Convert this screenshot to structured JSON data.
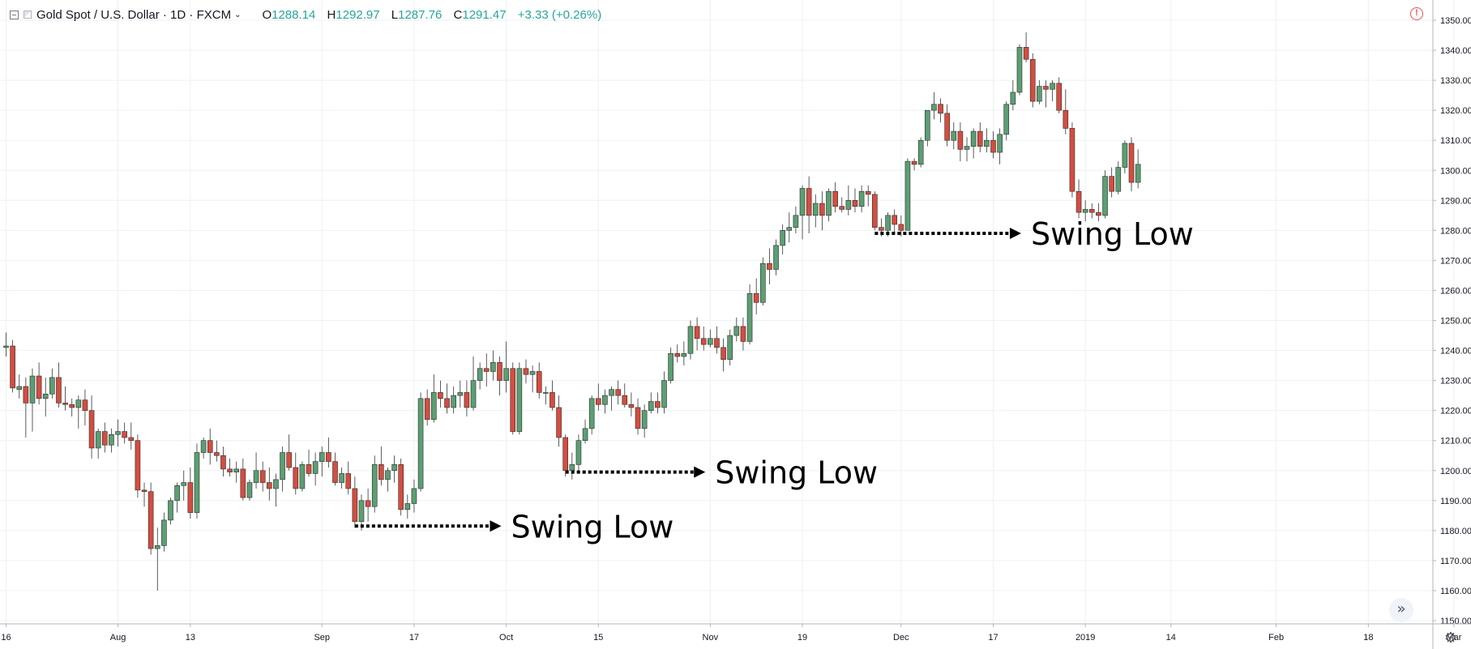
{
  "header": {
    "title": "Gold Spot / U.S. Dollar · 1D · FXCM",
    "chevron": "⌄",
    "o_label": "O",
    "o_value": "1288.14",
    "h_label": "H",
    "h_value": "1292.97",
    "l_label": "L",
    "l_value": "1287.76",
    "c_label": "C",
    "c_value": "1291.47",
    "change": "+3.33 (+0.26%)"
  },
  "icons": {
    "collapse": "collapse-icon",
    "symbol": "symbol-icon",
    "alert": "alert-icon",
    "alert_glyph": "!",
    "scroll": "scroll-right-icon",
    "scroll_glyph": "»",
    "settings": "gear-icon",
    "settings_glyph": "⚙"
  },
  "colors": {
    "up": "#5b9f73",
    "down": "#d44d3f",
    "background": "#ffffff",
    "grid": "#eef0f3",
    "text": "#131722"
  },
  "chart_data": {
    "type": "candlestick",
    "title": "Gold Spot / U.S. Dollar",
    "ylim": [
      1150,
      1355
    ],
    "y_ticks": [
      1150,
      1160,
      1170,
      1180,
      1190,
      1200,
      1210,
      1220,
      1230,
      1240,
      1250,
      1260,
      1270,
      1280,
      1290,
      1300,
      1310,
      1320,
      1330,
      1340,
      1350
    ],
    "x_tick_labels": [
      "16",
      "Aug",
      "13",
      "Sep",
      "17",
      "Oct",
      "15",
      "Nov",
      "19",
      "Dec",
      "17",
      "2019",
      "14",
      "Feb",
      "18",
      "Mar"
    ],
    "x_tick_bar_index": [
      0,
      17,
      28,
      48,
      62,
      76,
      90,
      107,
      121,
      136,
      150,
      164,
      177,
      193,
      207,
      220
    ],
    "grid": true,
    "candles": [
      [
        1241.0,
        1246.0,
        1238.0,
        1241.5
      ],
      [
        1241.5,
        1243.5,
        1226.0,
        1227.5
      ],
      [
        1227.0,
        1232.0,
        1224.0,
        1228.0
      ],
      [
        1228.0,
        1231.0,
        1211.0,
        1222.5
      ],
      [
        1222.5,
        1234.0,
        1213.0,
        1231.5
      ],
      [
        1231.5,
        1236.0,
        1222.0,
        1224.0
      ],
      [
        1224.0,
        1231.0,
        1218.0,
        1225.5
      ],
      [
        1225.5,
        1234.0,
        1224.0,
        1231.0
      ],
      [
        1231.0,
        1236.0,
        1221.0,
        1222.5
      ],
      [
        1222.5,
        1228.0,
        1220.0,
        1222.0
      ],
      [
        1222.0,
        1224.0,
        1218.0,
        1221.0
      ],
      [
        1221.0,
        1225.0,
        1214.0,
        1223.5
      ],
      [
        1223.5,
        1227.0,
        1215.0,
        1220.0
      ],
      [
        1220.0,
        1225.0,
        1204.0,
        1207.5
      ],
      [
        1207.5,
        1214.0,
        1204.0,
        1213.0
      ],
      [
        1213.0,
        1216.0,
        1206.0,
        1208.5
      ],
      [
        1208.5,
        1214.0,
        1206.0,
        1212.0
      ],
      [
        1212.0,
        1217.0,
        1208.0,
        1213.0
      ],
      [
        1213.0,
        1216.0,
        1209.0,
        1211.0
      ],
      [
        1211.0,
        1216.0,
        1207.0,
        1210.0
      ],
      [
        1210.0,
        1212.0,
        1191.0,
        1193.5
      ],
      [
        1193.5,
        1196.0,
        1188.0,
        1193.0
      ],
      [
        1193.0,
        1196.0,
        1172.0,
        1174.0
      ],
      [
        1174.0,
        1181.0,
        1160.0,
        1175.0
      ],
      [
        1175.0,
        1186.0,
        1173.0,
        1183.5
      ],
      [
        1183.5,
        1191.0,
        1182.0,
        1190.0
      ],
      [
        1190.0,
        1196.0,
        1186.0,
        1195.0
      ],
      [
        1195.0,
        1200.0,
        1190.0,
        1196.0
      ],
      [
        1196.0,
        1201.0,
        1184.0,
        1186.0
      ],
      [
        1186.0,
        1209.0,
        1184.0,
        1206.0
      ],
      [
        1206.0,
        1211.0,
        1204.0,
        1210.0
      ],
      [
        1210.0,
        1214.0,
        1202.0,
        1206.0
      ],
      [
        1206.0,
        1210.0,
        1203.0,
        1205.0
      ],
      [
        1205.0,
        1208.0,
        1198.0,
        1200.5
      ],
      [
        1200.5,
        1204.0,
        1198.0,
        1199.5
      ],
      [
        1199.5,
        1203.0,
        1196.0,
        1200.5
      ],
      [
        1200.5,
        1204.0,
        1190.0,
        1191.0
      ],
      [
        1191.0,
        1197.0,
        1190.0,
        1196.0
      ],
      [
        1196.0,
        1206.0,
        1194.0,
        1200.0
      ],
      [
        1200.0,
        1203.0,
        1193.0,
        1196.0
      ],
      [
        1196.0,
        1201.0,
        1190.0,
        1194.0
      ],
      [
        1194.0,
        1199.0,
        1188.0,
        1197.0
      ],
      [
        1197.0,
        1208.0,
        1193.0,
        1206.0
      ],
      [
        1206.0,
        1212.0,
        1200.0,
        1201.0
      ],
      [
        1201.0,
        1206.0,
        1192.0,
        1194.0
      ],
      [
        1194.0,
        1203.0,
        1193.0,
        1202.0
      ],
      [
        1202.0,
        1207.0,
        1198.0,
        1199.0
      ],
      [
        1199.0,
        1206.0,
        1195.0,
        1203.0
      ],
      [
        1203.0,
        1208.0,
        1198.0,
        1206.0
      ],
      [
        1206.0,
        1211.0,
        1201.0,
        1203.0
      ],
      [
        1203.0,
        1206.0,
        1195.0,
        1196.0
      ],
      [
        1196.0,
        1201.0,
        1194.0,
        1199.0
      ],
      [
        1199.0,
        1203.0,
        1192.0,
        1194.0
      ],
      [
        1194.0,
        1198.0,
        1181.0,
        1183.0
      ],
      [
        1183.0,
        1192.0,
        1180.0,
        1190.0
      ],
      [
        1190.0,
        1194.0,
        1183.0,
        1188.0
      ],
      [
        1188.0,
        1205.0,
        1186.0,
        1202.0
      ],
      [
        1202.0,
        1208.0,
        1195.0,
        1197.0
      ],
      [
        1197.0,
        1201.0,
        1193.0,
        1200.0
      ],
      [
        1200.0,
        1205.0,
        1196.0,
        1202.0
      ],
      [
        1202.0,
        1204.0,
        1185.0,
        1187.0
      ],
      [
        1187.0,
        1192.0,
        1184.0,
        1189.0
      ],
      [
        1189.0,
        1197.0,
        1186.0,
        1194.0
      ],
      [
        1194.0,
        1226.0,
        1193.0,
        1224.0
      ],
      [
        1224.0,
        1227.0,
        1215.0,
        1217.0
      ],
      [
        1217.0,
        1232.0,
        1216.0,
        1226.0
      ],
      [
        1226.0,
        1230.0,
        1221.0,
        1224.0
      ],
      [
        1224.0,
        1229.0,
        1219.0,
        1221.0
      ],
      [
        1221.0,
        1228.0,
        1219.0,
        1225.0
      ],
      [
        1225.0,
        1230.0,
        1221.0,
        1226.0
      ],
      [
        1226.0,
        1230.0,
        1218.0,
        1221.0
      ],
      [
        1221.0,
        1238.0,
        1220.0,
        1230.0
      ],
      [
        1230.0,
        1236.0,
        1227.0,
        1234.0
      ],
      [
        1234.0,
        1239.0,
        1228.0,
        1233.0
      ],
      [
        1233.0,
        1240.0,
        1230.0,
        1236.0
      ],
      [
        1236.0,
        1238.0,
        1225.0,
        1230.0
      ],
      [
        1230.0,
        1243.0,
        1226.0,
        1234.0
      ],
      [
        1234.0,
        1236.0,
        1212.0,
        1213.0
      ],
      [
        1213.0,
        1236.0,
        1212.0,
        1234.0
      ],
      [
        1234.0,
        1237.0,
        1229.0,
        1232.0
      ],
      [
        1232.0,
        1235.0,
        1226.0,
        1233.0
      ],
      [
        1233.0,
        1236.0,
        1224.0,
        1226.0
      ],
      [
        1226.0,
        1228.0,
        1222.0,
        1226.0
      ],
      [
        1226.0,
        1230.0,
        1220.0,
        1221.0
      ],
      [
        1221.0,
        1225.0,
        1208.0,
        1211.0
      ],
      [
        1211.0,
        1212.0,
        1198.0,
        1200.0
      ],
      [
        1200.0,
        1206.0,
        1197.0,
        1202.0
      ],
      [
        1202.0,
        1212.0,
        1199.0,
        1210.0
      ],
      [
        1210.0,
        1217.0,
        1209.0,
        1214.0
      ],
      [
        1214.0,
        1225.0,
        1212.0,
        1224.0
      ],
      [
        1224.0,
        1229.0,
        1220.0,
        1222.0
      ],
      [
        1222.0,
        1227.0,
        1219.0,
        1225.0
      ],
      [
        1225.0,
        1228.0,
        1220.0,
        1227.0
      ],
      [
        1227.0,
        1230.0,
        1222.0,
        1225.0
      ],
      [
        1225.0,
        1229.0,
        1221.0,
        1222.0
      ],
      [
        1222.0,
        1226.0,
        1218.0,
        1221.0
      ],
      [
        1221.0,
        1224.0,
        1212.0,
        1214.0
      ],
      [
        1214.0,
        1222.0,
        1211.0,
        1220.0
      ],
      [
        1220.0,
        1226.0,
        1219.0,
        1223.0
      ],
      [
        1223.0,
        1226.0,
        1219.0,
        1221.0
      ],
      [
        1221.0,
        1233.0,
        1219.0,
        1230.0
      ],
      [
        1230.0,
        1241.0,
        1229.0,
        1239.0
      ],
      [
        1239.0,
        1242.0,
        1236.0,
        1238.0
      ],
      [
        1238.0,
        1243.0,
        1235.0,
        1239.0
      ],
      [
        1239.0,
        1250.0,
        1237.0,
        1248.0
      ],
      [
        1248.0,
        1251.0,
        1240.0,
        1244.0
      ],
      [
        1244.0,
        1248.0,
        1240.0,
        1242.0
      ],
      [
        1242.0,
        1247.0,
        1241.0,
        1244.0
      ],
      [
        1244.0,
        1248.0,
        1239.0,
        1241.0
      ],
      [
        1241.0,
        1244.0,
        1233.0,
        1237.0
      ],
      [
        1237.0,
        1247.0,
        1235.0,
        1245.0
      ],
      [
        1245.0,
        1251.0,
        1243.0,
        1248.0
      ],
      [
        1248.0,
        1251.0,
        1240.0,
        1243.0
      ],
      [
        1243.0,
        1262.0,
        1242.0,
        1259.0
      ],
      [
        1259.0,
        1264.0,
        1252.0,
        1256.0
      ],
      [
        1256.0,
        1271.0,
        1255.0,
        1269.0
      ],
      [
        1269.0,
        1274.0,
        1262.0,
        1267.0
      ],
      [
        1267.0,
        1277.0,
        1265.0,
        1275.0
      ],
      [
        1275.0,
        1282.0,
        1272.0,
        1280.0
      ],
      [
        1280.0,
        1286.0,
        1276.0,
        1281.0
      ],
      [
        1281.0,
        1288.0,
        1279.0,
        1285.0
      ],
      [
        1285.0,
        1295.0,
        1277.0,
        1294.0
      ],
      [
        1294.0,
        1298.0,
        1279.0,
        1285.0
      ],
      [
        1285.0,
        1292.0,
        1281.0,
        1289.0
      ],
      [
        1289.0,
        1293.0,
        1280.0,
        1285.0
      ],
      [
        1285.0,
        1294.0,
        1283.0,
        1293.0
      ],
      [
        1293.0,
        1296.0,
        1286.0,
        1288.0
      ],
      [
        1288.0,
        1291.0,
        1286.0,
        1287.0
      ],
      [
        1287.0,
        1295.0,
        1285.0,
        1290.0
      ],
      [
        1290.0,
        1294.0,
        1286.0,
        1288.0
      ],
      [
        1288.0,
        1295.0,
        1286.0,
        1293.0
      ],
      [
        1293.0,
        1295.0,
        1288.0,
        1292.0
      ],
      [
        1292.0,
        1293.0,
        1280.0,
        1281.0
      ],
      [
        1281.0,
        1284.0,
        1278.0,
        1280.0
      ],
      [
        1280.0,
        1286.0,
        1278.0,
        1285.0
      ],
      [
        1285.0,
        1287.0,
        1279.0,
        1282.0
      ],
      [
        1282.0,
        1285.0,
        1278.0,
        1280.0
      ],
      [
        1280.0,
        1304.0,
        1280.0,
        1303.0
      ],
      [
        1303.0,
        1304.0,
        1300.0,
        1302.0
      ],
      [
        1302.0,
        1311.0,
        1301.0,
        1310.0
      ],
      [
        1310.0,
        1320.0,
        1308.0,
        1320.0
      ],
      [
        1320.0,
        1326.0,
        1317.0,
        1322.0
      ],
      [
        1322.0,
        1324.0,
        1316.0,
        1319.0
      ],
      [
        1319.0,
        1322.0,
        1308.0,
        1310.0
      ],
      [
        1310.0,
        1316.0,
        1307.0,
        1313.0
      ],
      [
        1313.0,
        1316.0,
        1303.0,
        1307.0
      ],
      [
        1307.0,
        1311.0,
        1303.0,
        1308.0
      ],
      [
        1308.0,
        1314.0,
        1304.0,
        1313.0
      ],
      [
        1313.0,
        1316.0,
        1306.0,
        1308.0
      ],
      [
        1308.0,
        1314.0,
        1306.0,
        1310.0
      ],
      [
        1310.0,
        1313.0,
        1304.0,
        1306.0
      ],
      [
        1306.0,
        1314.0,
        1302.0,
        1312.0
      ],
      [
        1312.0,
        1323.0,
        1310.0,
        1322.0
      ],
      [
        1322.0,
        1330.0,
        1320.0,
        1326.0
      ],
      [
        1326.0,
        1342.0,
        1325.0,
        1341.0
      ],
      [
        1341.0,
        1346.0,
        1336.0,
        1337.0
      ],
      [
        1337.0,
        1339.0,
        1321.0,
        1323.0
      ],
      [
        1323.0,
        1330.0,
        1322.0,
        1328.0
      ],
      [
        1328.0,
        1330.0,
        1321.0,
        1327.0
      ],
      [
        1327.0,
        1330.0,
        1323.0,
        1329.0
      ],
      [
        1329.0,
        1331.0,
        1319.0,
        1320.0
      ],
      [
        1320.0,
        1327.0,
        1312.0,
        1314.0
      ],
      [
        1314.0,
        1316.0,
        1291.0,
        1293.0
      ],
      [
        1293.0,
        1297.0,
        1284.0,
        1286.0
      ],
      [
        1286.0,
        1290.0,
        1283.0,
        1287.0
      ],
      [
        1287.0,
        1289.0,
        1284.0,
        1286.0
      ],
      [
        1286.0,
        1289.0,
        1283.0,
        1285.0
      ],
      [
        1285.0,
        1300.0,
        1284.0,
        1298.0
      ],
      [
        1298.0,
        1301.0,
        1291.0,
        1293.0
      ],
      [
        1293.0,
        1303.0,
        1292.0,
        1301.0
      ],
      [
        1301.0,
        1310.0,
        1299.0,
        1309.0
      ],
      [
        1309.0,
        1311.0,
        1293.0,
        1296.0
      ],
      [
        1296.0,
        1307.0,
        1294.0,
        1302.0
      ]
    ],
    "annotations": [
      {
        "text": "Swing Low",
        "start_bar": 53,
        "end_bar": 75,
        "price": 1181.5
      },
      {
        "text": "Swing Low",
        "start_bar": 85,
        "end_bar": 106,
        "price": 1199.5
      },
      {
        "text": "Swing Low",
        "start_bar": 132,
        "end_bar": 154,
        "price": 1279.0
      }
    ]
  }
}
